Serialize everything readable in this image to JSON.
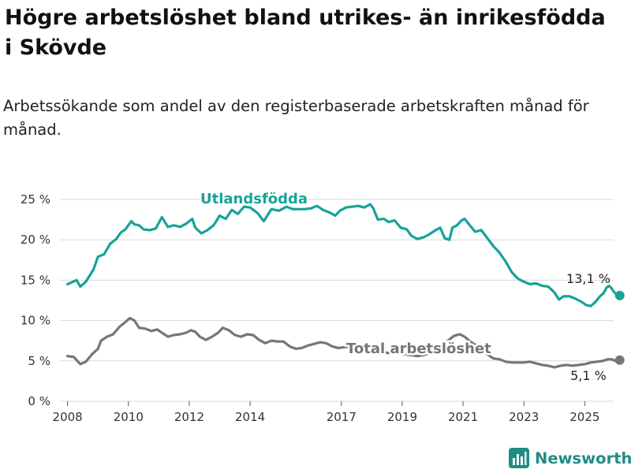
{
  "title": "Högre arbetslöshet bland utrikes- än inrikesfödda i Skövde",
  "subtitle": "Arbetssökande som andel av den registerbaserade arbetskraften månad för månad.",
  "brand": "Newsworthy",
  "colors": {
    "utlandsfodda": "#17a398",
    "total": "#767578",
    "grid": "#d9d9d9",
    "brand": "#1f8c86"
  },
  "chart_data": {
    "type": "line",
    "xlabel": "",
    "ylabel": "",
    "xlim": [
      2007.75,
      2025.95
    ],
    "ylim": [
      0,
      25
    ],
    "x_ticks": [
      2008,
      2010,
      2012,
      2014,
      2017,
      2019,
      2021,
      2023,
      2025
    ],
    "x_tick_labels": [
      "2008",
      "2010",
      "2012",
      "2014",
      "2017",
      "2019",
      "2021",
      "2023",
      "2025"
    ],
    "y_ticks": [
      0,
      5,
      10,
      15,
      20,
      25
    ],
    "y_tick_labels": [
      "0 %",
      "5 %",
      "10 %",
      "15 %",
      "20 %",
      "25 %"
    ],
    "grid": "horizontal",
    "legend": "inline labels",
    "series": [
      {
        "name": "Utlandsfödda",
        "end_label": "13,1 %",
        "points": [
          [
            2008.0,
            14.5
          ],
          [
            2008.3,
            15.0
          ],
          [
            2008.42,
            14.2
          ],
          [
            2008.6,
            14.8
          ],
          [
            2008.85,
            16.3
          ],
          [
            2009.0,
            17.9
          ],
          [
            2009.2,
            18.2
          ],
          [
            2009.4,
            19.5
          ],
          [
            2009.6,
            20.1
          ],
          [
            2009.75,
            20.9
          ],
          [
            2009.9,
            21.3
          ],
          [
            2010.1,
            22.3
          ],
          [
            2010.2,
            21.9
          ],
          [
            2010.35,
            21.8
          ],
          [
            2010.5,
            21.3
          ],
          [
            2010.7,
            21.2
          ],
          [
            2010.9,
            21.4
          ],
          [
            2011.1,
            22.8
          ],
          [
            2011.3,
            21.6
          ],
          [
            2011.5,
            21.8
          ],
          [
            2011.7,
            21.6
          ],
          [
            2011.9,
            22.0
          ],
          [
            2012.1,
            22.6
          ],
          [
            2012.2,
            21.5
          ],
          [
            2012.4,
            20.8
          ],
          [
            2012.6,
            21.2
          ],
          [
            2012.8,
            21.8
          ],
          [
            2013.0,
            23.0
          ],
          [
            2013.2,
            22.6
          ],
          [
            2013.4,
            23.7
          ],
          [
            2013.6,
            23.2
          ],
          [
            2013.8,
            24.1
          ],
          [
            2014.0,
            24.0
          ],
          [
            2014.25,
            23.3
          ],
          [
            2014.45,
            22.3
          ],
          [
            2014.7,
            23.8
          ],
          [
            2014.95,
            23.6
          ],
          [
            2015.2,
            24.1
          ],
          [
            2015.4,
            23.8
          ],
          [
            2015.6,
            23.8
          ],
          [
            2015.8,
            23.8
          ],
          [
            2016.0,
            23.9
          ],
          [
            2016.2,
            24.2
          ],
          [
            2016.4,
            23.7
          ],
          [
            2016.6,
            23.4
          ],
          [
            2016.8,
            23.0
          ],
          [
            2016.95,
            23.6
          ],
          [
            2017.15,
            24.0
          ],
          [
            2017.35,
            24.1
          ],
          [
            2017.55,
            24.2
          ],
          [
            2017.75,
            24.0
          ],
          [
            2017.95,
            24.4
          ],
          [
            2018.05,
            23.9
          ],
          [
            2018.2,
            22.5
          ],
          [
            2018.4,
            22.6
          ],
          [
            2018.55,
            22.2
          ],
          [
            2018.75,
            22.4
          ],
          [
            2018.95,
            21.5
          ],
          [
            2019.15,
            21.3
          ],
          [
            2019.3,
            20.5
          ],
          [
            2019.5,
            20.1
          ],
          [
            2019.7,
            20.3
          ],
          [
            2019.9,
            20.7
          ],
          [
            2020.1,
            21.2
          ],
          [
            2020.25,
            21.5
          ],
          [
            2020.4,
            20.2
          ],
          [
            2020.55,
            20.0
          ],
          [
            2020.65,
            21.5
          ],
          [
            2020.8,
            21.8
          ],
          [
            2020.95,
            22.4
          ],
          [
            2021.05,
            22.6
          ],
          [
            2021.2,
            21.9
          ],
          [
            2021.4,
            21.0
          ],
          [
            2021.6,
            21.2
          ],
          [
            2021.8,
            20.2
          ],
          [
            2022.0,
            19.2
          ],
          [
            2022.2,
            18.4
          ],
          [
            2022.4,
            17.3
          ],
          [
            2022.6,
            16.0
          ],
          [
            2022.8,
            15.2
          ],
          [
            2023.0,
            14.8
          ],
          [
            2023.2,
            14.5
          ],
          [
            2023.4,
            14.6
          ],
          [
            2023.6,
            14.3
          ],
          [
            2023.8,
            14.2
          ],
          [
            2024.0,
            13.5
          ],
          [
            2024.15,
            12.6
          ],
          [
            2024.3,
            13.0
          ],
          [
            2024.5,
            13.0
          ],
          [
            2024.7,
            12.7
          ],
          [
            2024.9,
            12.3
          ],
          [
            2025.05,
            11.9
          ],
          [
            2025.2,
            11.8
          ],
          [
            2025.35,
            12.3
          ],
          [
            2025.5,
            13.0
          ],
          [
            2025.62,
            13.4
          ],
          [
            2025.72,
            14.1
          ],
          [
            2025.8,
            14.3
          ],
          [
            2025.88,
            14.0
          ],
          [
            2025.95,
            13.6
          ],
          [
            2026.05,
            13.2
          ],
          [
            2026.15,
            13.1
          ]
        ]
      },
      {
        "name": "Total arbetslöshet",
        "end_label": "5,1 %",
        "points": [
          [
            2008.0,
            5.6
          ],
          [
            2008.2,
            5.5
          ],
          [
            2008.42,
            4.6
          ],
          [
            2008.6,
            4.9
          ],
          [
            2008.8,
            5.8
          ],
          [
            2009.0,
            6.5
          ],
          [
            2009.1,
            7.5
          ],
          [
            2009.3,
            8.0
          ],
          [
            2009.5,
            8.3
          ],
          [
            2009.7,
            9.2
          ],
          [
            2009.9,
            9.8
          ],
          [
            2010.05,
            10.3
          ],
          [
            2010.2,
            10.0
          ],
          [
            2010.35,
            9.1
          ],
          [
            2010.55,
            9.0
          ],
          [
            2010.75,
            8.7
          ],
          [
            2010.95,
            8.9
          ],
          [
            2011.1,
            8.5
          ],
          [
            2011.3,
            8.0
          ],
          [
            2011.5,
            8.2
          ],
          [
            2011.7,
            8.3
          ],
          [
            2011.9,
            8.5
          ],
          [
            2012.05,
            8.8
          ],
          [
            2012.2,
            8.6
          ],
          [
            2012.35,
            8.0
          ],
          [
            2012.55,
            7.6
          ],
          [
            2012.75,
            8.0
          ],
          [
            2012.95,
            8.5
          ],
          [
            2013.1,
            9.1
          ],
          [
            2013.3,
            8.8
          ],
          [
            2013.5,
            8.2
          ],
          [
            2013.7,
            8.0
          ],
          [
            2013.9,
            8.3
          ],
          [
            2014.1,
            8.2
          ],
          [
            2014.3,
            7.6
          ],
          [
            2014.5,
            7.2
          ],
          [
            2014.7,
            7.5
          ],
          [
            2014.9,
            7.4
          ],
          [
            2015.1,
            7.4
          ],
          [
            2015.3,
            6.8
          ],
          [
            2015.5,
            6.5
          ],
          [
            2015.7,
            6.6
          ],
          [
            2015.9,
            6.9
          ],
          [
            2016.1,
            7.1
          ],
          [
            2016.3,
            7.3
          ],
          [
            2016.5,
            7.2
          ],
          [
            2016.7,
            6.8
          ],
          [
            2016.9,
            6.6
          ],
          [
            2017.1,
            6.7
          ],
          [
            2017.3,
            6.8
          ],
          [
            2017.5,
            6.6
          ],
          [
            2017.7,
            6.7
          ],
          [
            2017.9,
            6.7
          ],
          [
            2018.1,
            6.5
          ],
          [
            2018.3,
            6.2
          ],
          [
            2018.5,
            6.0
          ],
          [
            2018.7,
            6.0
          ],
          [
            2018.9,
            5.9
          ],
          [
            2019.1,
            5.8
          ],
          [
            2019.3,
            5.7
          ],
          [
            2019.5,
            5.6
          ],
          [
            2019.7,
            5.7
          ],
          [
            2019.9,
            6.0
          ],
          [
            2020.1,
            6.6
          ],
          [
            2020.3,
            7.0
          ],
          [
            2020.5,
            7.5
          ],
          [
            2020.7,
            8.1
          ],
          [
            2020.9,
            8.3
          ],
          [
            2021.05,
            8.0
          ],
          [
            2021.2,
            7.5
          ],
          [
            2021.4,
            7.0
          ],
          [
            2021.6,
            6.3
          ],
          [
            2021.8,
            5.8
          ],
          [
            2022.0,
            5.3
          ],
          [
            2022.2,
            5.2
          ],
          [
            2022.4,
            4.9
          ],
          [
            2022.6,
            4.8
          ],
          [
            2022.8,
            4.8
          ],
          [
            2023.0,
            4.8
          ],
          [
            2023.2,
            4.9
          ],
          [
            2023.4,
            4.7
          ],
          [
            2023.6,
            4.5
          ],
          [
            2023.8,
            4.4
          ],
          [
            2024.0,
            4.2
          ],
          [
            2024.2,
            4.4
          ],
          [
            2024.4,
            4.5
          ],
          [
            2024.6,
            4.4
          ],
          [
            2024.8,
            4.5
          ],
          [
            2025.0,
            4.6
          ],
          [
            2025.2,
            4.8
          ],
          [
            2025.4,
            4.9
          ],
          [
            2025.6,
            5.0
          ],
          [
            2025.75,
            5.2
          ],
          [
            2025.9,
            5.2
          ],
          [
            2026.0,
            5.0
          ],
          [
            2026.1,
            5.2
          ],
          [
            2026.15,
            5.1
          ]
        ]
      }
    ]
  }
}
